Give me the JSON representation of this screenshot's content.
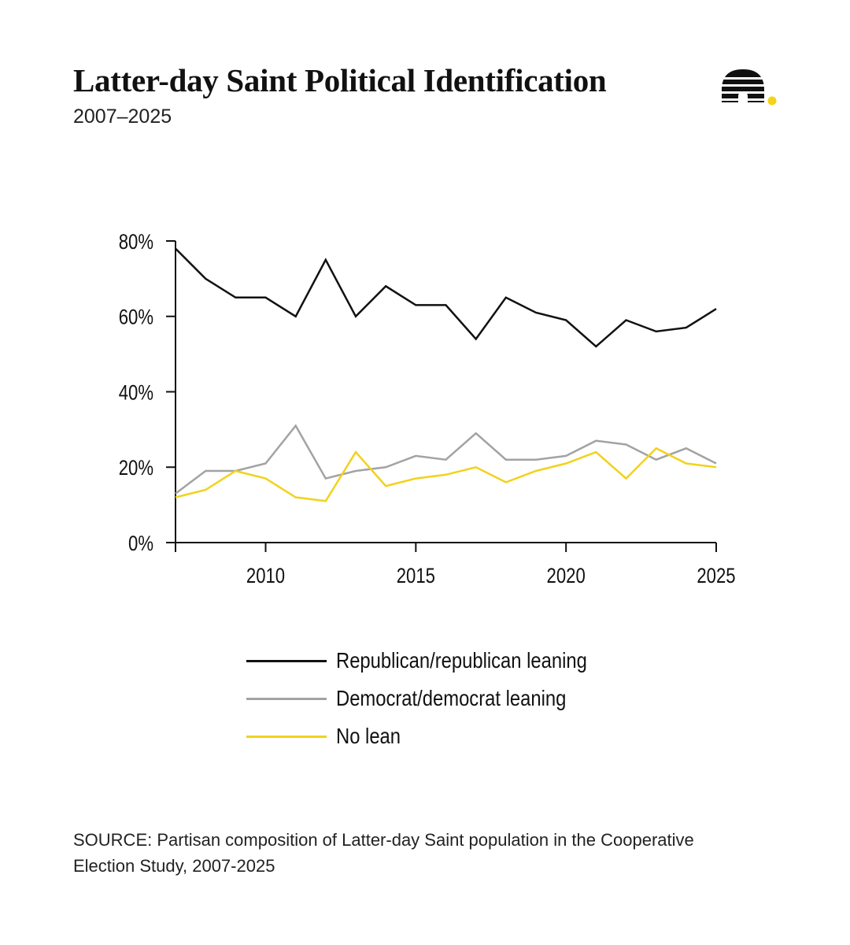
{
  "header": {
    "title": "Latter-day Saint Political Identification",
    "subtitle": "2007–2025"
  },
  "logo": {
    "icon": "beehive-icon",
    "accent_color": "#f5d315"
  },
  "chart_data": {
    "type": "line",
    "title": "Latter-day Saint Political Identification",
    "subtitle": "2007–2025",
    "xlabel": "",
    "ylabel": "",
    "x": [
      2007,
      2008,
      2009,
      2010,
      2011,
      2012,
      2013,
      2014,
      2015,
      2016,
      2017,
      2018,
      2019,
      2020,
      2021,
      2022,
      2023,
      2024,
      2025
    ],
    "xlim": [
      2007,
      2025
    ],
    "ylim": [
      0,
      80
    ],
    "x_ticks": [
      {
        "value": 2010,
        "label": "2010"
      },
      {
        "value": 2015,
        "label": "2015"
      },
      {
        "value": 2020,
        "label": "2020"
      },
      {
        "value": 2025,
        "label": "2025"
      }
    ],
    "y_ticks": [
      {
        "value": 0,
        "label": "0%"
      },
      {
        "value": 20,
        "label": "20%"
      },
      {
        "value": 40,
        "label": "40%"
      },
      {
        "value": 60,
        "label": "60%"
      },
      {
        "value": 80,
        "label": "80%"
      }
    ],
    "grid": false,
    "legend_position": "bottom",
    "series": [
      {
        "name": "Republican/republican leaning",
        "color": "#111111",
        "values": [
          78,
          70,
          65,
          65,
          60,
          75,
          60,
          68,
          63,
          63,
          54,
          65,
          61,
          59,
          52,
          59,
          56,
          57,
          62
        ]
      },
      {
        "name": "Democrat/democrat leaning",
        "color": "#a3a3a3",
        "values": [
          13,
          19,
          19,
          21,
          31,
          17,
          19,
          20,
          23,
          22,
          29,
          22,
          22,
          23,
          27,
          26,
          22,
          25,
          21
        ]
      },
      {
        "name": "No lean",
        "color": "#f2d21c",
        "values": [
          12,
          14,
          19,
          17,
          12,
          11,
          24,
          15,
          17,
          18,
          20,
          16,
          19,
          21,
          24,
          17,
          25,
          21,
          20
        ]
      }
    ]
  },
  "legend": {
    "items": [
      {
        "label": "Republican/republican leaning",
        "color": "#111111"
      },
      {
        "label": "Democrat/democrat leaning",
        "color": "#a3a3a3"
      },
      {
        "label": "No lean",
        "color": "#f2d21c"
      }
    ]
  },
  "footer": {
    "source": "SOURCE: Partisan composition of Latter-day Saint population in the Cooperative Election Study, 2007-2025"
  }
}
